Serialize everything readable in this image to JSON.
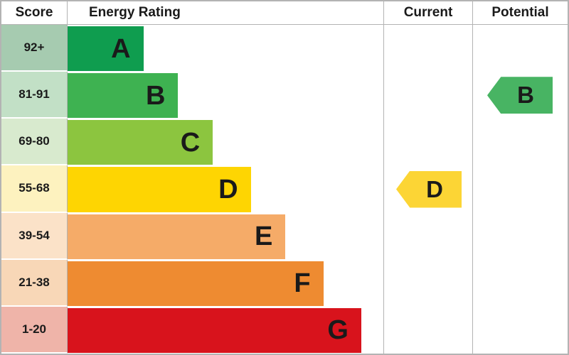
{
  "chart_data": {
    "type": "bar",
    "title": "Energy Rating",
    "columns": {
      "score": "Score",
      "rating": "Energy Rating",
      "current": "Current",
      "potential": "Potential"
    },
    "bands": [
      {
        "score": "92+",
        "letter": "A",
        "bar_color": "#0f9d4f",
        "score_bg": "#a6cbb0",
        "bar_width_pct": 24
      },
      {
        "score": "81-91",
        "letter": "B",
        "bar_color": "#3eb251",
        "score_bg": "#c2e0c6",
        "bar_width_pct": 35
      },
      {
        "score": "69-80",
        "letter": "C",
        "bar_color": "#8cc53f",
        "score_bg": "#d8eace",
        "bar_width_pct": 46
      },
      {
        "score": "55-68",
        "letter": "D",
        "bar_color": "#fed502",
        "score_bg": "#fdf2bf",
        "bar_width_pct": 58
      },
      {
        "score": "39-54",
        "letter": "E",
        "bar_color": "#f5ab68",
        "score_bg": "#fbe2c8",
        "bar_width_pct": 69
      },
      {
        "score": "21-38",
        "letter": "F",
        "bar_color": "#ee8b31",
        "score_bg": "#f8d7b7",
        "bar_width_pct": 81
      },
      {
        "score": "1-20",
        "letter": "G",
        "bar_color": "#d8131c",
        "score_bg": "#efb4a9",
        "bar_width_pct": 93
      }
    ],
    "current": {
      "letter": "D",
      "color": "#fcd535",
      "band_index": 3,
      "score_range": "55-68"
    },
    "potential": {
      "letter": "B",
      "color": "#48b463",
      "band_index": 1,
      "score_range": "81-91"
    }
  }
}
